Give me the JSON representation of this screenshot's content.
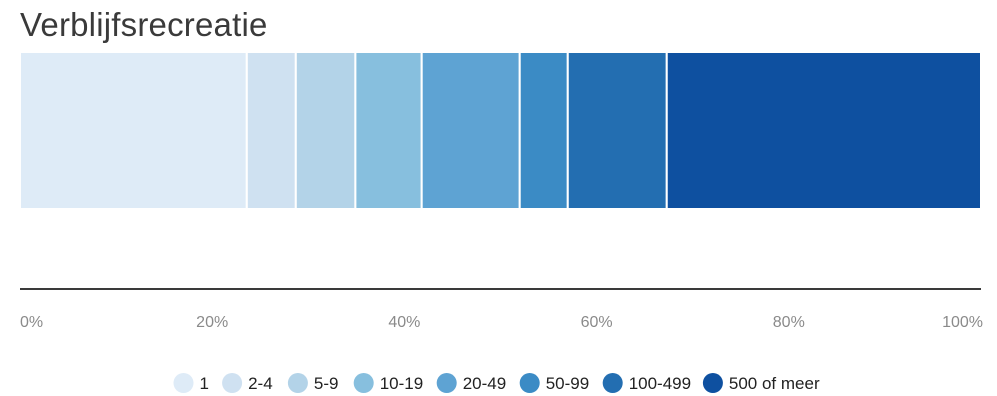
{
  "chart_data": {
    "type": "bar",
    "orientation": "horizontal",
    "stacked": true,
    "title": "Verblijfsrecreatie",
    "categories": [
      "Verblijfsrecreatie"
    ],
    "series": [
      {
        "name": "1",
        "values": [
          23.6
        ],
        "color": "#deebf7"
      },
      {
        "name": "2-4",
        "values": [
          5.1
        ],
        "color": "#cfe1f1"
      },
      {
        "name": "5-9",
        "values": [
          6.2
        ],
        "color": "#b3d3e8"
      },
      {
        "name": "10-19",
        "values": [
          6.9
        ],
        "color": "#87bfde"
      },
      {
        "name": "20-49",
        "values": [
          10.2
        ],
        "color": "#5ea3d3"
      },
      {
        "name": "50-99",
        "values": [
          5.0
        ],
        "color": "#3b8bc5"
      },
      {
        "name": "100-499",
        "values": [
          10.3
        ],
        "color": "#236eb1"
      },
      {
        "name": "500 of meer",
        "values": [
          32.7
        ],
        "color": "#0e50a0"
      }
    ],
    "xlim": [
      0,
      100
    ],
    "xticks": [
      {
        "value": 0,
        "label": "0%"
      },
      {
        "value": 20,
        "label": "20%"
      },
      {
        "value": 40,
        "label": "40%"
      },
      {
        "value": 60,
        "label": "60%"
      },
      {
        "value": 80,
        "label": "80%"
      },
      {
        "value": 100,
        "label": "100%"
      }
    ],
    "grid": false,
    "legend_position": "bottom"
  }
}
